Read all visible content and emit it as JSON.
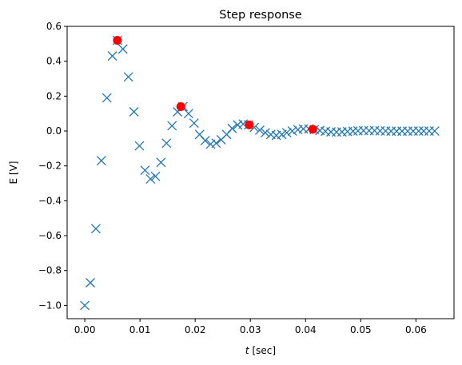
{
  "chart_data": {
    "type": "scatter",
    "title": "Step response",
    "xlabel": "t",
    "xlabel_unit": " [sec]",
    "ylabel": "E [V]",
    "xlim": [
      -0.0032,
      0.0669
    ],
    "ylim": [
      -1.076,
      0.6
    ],
    "x_ticks": [
      0.0,
      0.01,
      0.02,
      0.03,
      0.04,
      0.05,
      0.06
    ],
    "x_tick_labels": [
      "0.00",
      "0.01",
      "0.02",
      "0.03",
      "0.04",
      "0.05",
      "0.06"
    ],
    "y_ticks": [
      -1.0,
      -0.8,
      -0.6,
      -0.4,
      -0.2,
      0.0,
      0.2,
      0.4,
      0.6
    ],
    "y_tick_labels": [
      "−1.0",
      "−0.8",
      "−0.6",
      "−0.4",
      "−0.2",
      "0.0",
      "0.2",
      "0.4",
      "0.6"
    ],
    "grid": false,
    "series": [
      {
        "marker": "x",
        "color": "#1f77b4",
        "x": [
          0.0,
          0.001,
          0.002,
          0.003,
          0.004,
          0.005,
          0.0059,
          0.0069,
          0.0079,
          0.0089,
          0.0099,
          0.0109,
          0.0119,
          0.0128,
          0.0138,
          0.0148,
          0.0158,
          0.0168,
          0.0178,
          0.0188,
          0.0198,
          0.0208,
          0.0218,
          0.0228,
          0.0238,
          0.0247,
          0.0257,
          0.0267,
          0.0277,
          0.0287,
          0.0297,
          0.0307,
          0.0317,
          0.0327,
          0.0337,
          0.0347,
          0.0357,
          0.0366,
          0.0376,
          0.0386,
          0.0396,
          0.0406,
          0.0416,
          0.0426,
          0.0436,
          0.0446,
          0.0456,
          0.0466,
          0.0476,
          0.0486,
          0.0495,
          0.0505,
          0.0515,
          0.0525,
          0.0535,
          0.0545,
          0.0555,
          0.0565,
          0.0575,
          0.0585,
          0.0595,
          0.0605,
          0.0614,
          0.0624,
          0.0634
        ],
        "y": [
          -1.0,
          -0.87,
          -0.56,
          -0.17,
          0.19,
          0.43,
          0.52,
          0.47,
          0.31,
          0.11,
          -0.085,
          -0.225,
          -0.275,
          -0.26,
          -0.18,
          -0.07,
          0.03,
          0.11,
          0.14,
          0.1,
          0.045,
          -0.02,
          -0.055,
          -0.075,
          -0.07,
          -0.05,
          -0.02,
          0.015,
          0.035,
          0.04,
          0.035,
          0.02,
          0.005,
          -0.01,
          -0.02,
          -0.025,
          -0.02,
          -0.01,
          0.0,
          0.008,
          0.012,
          0.012,
          0.008,
          0.003,
          -0.002,
          -0.005,
          -0.006,
          -0.005,
          -0.003,
          -0.001,
          0.001,
          0.002,
          0.002,
          0.002,
          0.001,
          0.0,
          -0.001,
          -0.001,
          -0.001,
          -0.001,
          0.0,
          0.0,
          0.0,
          0.0,
          0.0
        ]
      },
      {
        "marker": "o",
        "color": "#ff0000",
        "x": [
          0.0059,
          0.0174,
          0.0298,
          0.0413
        ],
        "y": [
          0.52,
          0.14,
          0.035,
          0.01
        ]
      }
    ]
  }
}
